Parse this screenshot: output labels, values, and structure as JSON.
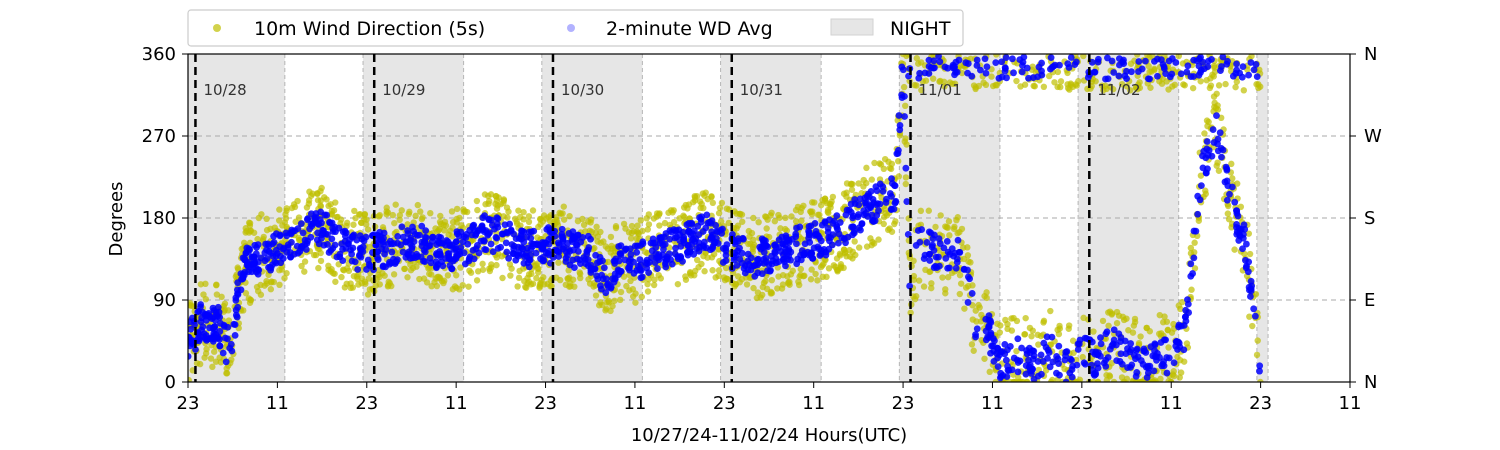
{
  "chart_data": {
    "type": "scatter",
    "xlabel": "10/27/24-11/02/24  Hours(UTC)",
    "ylabel": "Degrees",
    "x_range_hours": [
      0,
      156
    ],
    "x_tick_hours": [
      0,
      12,
      24,
      36,
      48,
      60,
      72,
      84,
      96,
      108,
      120,
      132,
      144,
      156
    ],
    "x_tick_labels": [
      "23",
      "11",
      "23",
      "11",
      "23",
      "11",
      "23",
      "11",
      "23",
      "11",
      "23",
      "11",
      "23",
      "11"
    ],
    "ylim": [
      0,
      360
    ],
    "y_ticks": [
      0,
      90,
      180,
      270,
      360
    ],
    "y_tick_labels": [
      "0",
      "90",
      "180",
      "270",
      "360"
    ],
    "right_axis_labels": [
      "N",
      "E",
      "S",
      "W",
      "N"
    ],
    "grid": "horizontal dashed at 90/180/270",
    "legend_position": "top",
    "legend": [
      {
        "label": "10m Wind Direction (5s)",
        "marker": "dot",
        "color": "#bfbf00"
      },
      {
        "label": "2-minute WD Avg",
        "marker": "dot",
        "color": "#0000ff"
      },
      {
        "label": "NIGHT",
        "marker": "patch",
        "color": "#e6e6e6"
      }
    ],
    "day_markers": [
      {
        "hour": 1,
        "label": "10/28"
      },
      {
        "hour": 25,
        "label": "10/29"
      },
      {
        "hour": 49,
        "label": "10/30"
      },
      {
        "hour": 73,
        "label": "10/31"
      },
      {
        "hour": 97,
        "label": "11/01"
      },
      {
        "hour": 121,
        "label": "11/02"
      }
    ],
    "night_periods": [
      {
        "start": 0,
        "end": 13
      },
      {
        "start": 23.5,
        "end": 37
      },
      {
        "start": 47.5,
        "end": 61
      },
      {
        "start": 71.5,
        "end": 85
      },
      {
        "start": 95.5,
        "end": 109
      },
      {
        "start": 119.5,
        "end": 133
      },
      {
        "start": 143.5,
        "end": 145
      }
    ],
    "series": [
      {
        "name": "2-minute WD Avg",
        "color": "#0000ff",
        "hours": [
          0,
          1,
          2,
          3,
          4,
          5,
          6,
          7,
          8,
          10,
          12,
          14,
          16,
          18,
          20,
          22,
          24,
          26,
          28,
          30,
          32,
          34,
          36,
          38,
          40,
          42,
          44,
          46,
          48,
          50,
          52,
          54,
          56,
          58,
          60,
          62,
          64,
          66,
          68,
          70,
          72,
          74,
          76,
          78,
          80,
          82,
          84,
          86,
          88,
          90,
          92,
          94,
          95,
          96,
          97,
          98,
          100,
          102,
          104,
          106,
          107,
          108,
          109,
          110,
          112,
          114,
          116,
          118,
          120,
          122,
          124,
          126,
          128,
          130,
          132,
          134,
          136,
          138,
          140,
          142,
          144
        ],
        "degrees": [
          45,
          55,
          70,
          60,
          65,
          40,
          45,
          110,
          130,
          140,
          145,
          150,
          165,
          170,
          150,
          145,
          140,
          145,
          150,
          155,
          150,
          140,
          145,
          150,
          165,
          160,
          150,
          145,
          150,
          150,
          145,
          140,
          115,
          135,
          130,
          140,
          145,
          150,
          160,
          165,
          150,
          140,
          135,
          140,
          145,
          150,
          155,
          160,
          170,
          185,
          195,
          205,
          210,
          350,
          80,
          150,
          145,
          140,
          135,
          50,
          70,
          40,
          20,
          25,
          30,
          20,
          35,
          15,
          30,
          25,
          40,
          30,
          20,
          30,
          25,
          60,
          230,
          280,
          200,
          150,
          10
        ]
      },
      {
        "name": "10m Wind Direction (5s)",
        "color": "#bfbf00",
        "hours": [
          0,
          1,
          2,
          3,
          4,
          5,
          6,
          7,
          8,
          10,
          12,
          14,
          16,
          18,
          20,
          22,
          24,
          26,
          28,
          30,
          32,
          34,
          36,
          38,
          40,
          42,
          44,
          46,
          48,
          50,
          52,
          54,
          56,
          58,
          60,
          62,
          64,
          66,
          68,
          70,
          72,
          74,
          76,
          78,
          80,
          82,
          84,
          86,
          88,
          90,
          92,
          94,
          95,
          96,
          97,
          98,
          100,
          102,
          104,
          106,
          107,
          108,
          109,
          110,
          112,
          114,
          116,
          118,
          120,
          122,
          124,
          126,
          128,
          130,
          132,
          134,
          136,
          138,
          140,
          142,
          144
        ],
        "degrees": [
          45,
          55,
          70,
          60,
          65,
          40,
          45,
          110,
          130,
          140,
          145,
          150,
          165,
          170,
          150,
          145,
          140,
          145,
          150,
          155,
          150,
          140,
          145,
          150,
          165,
          160,
          150,
          145,
          150,
          150,
          145,
          140,
          115,
          135,
          130,
          140,
          145,
          150,
          160,
          165,
          150,
          140,
          135,
          140,
          145,
          150,
          155,
          160,
          170,
          185,
          195,
          205,
          210,
          350,
          80,
          150,
          145,
          140,
          135,
          50,
          70,
          40,
          20,
          25,
          30,
          20,
          35,
          15,
          30,
          25,
          40,
          30,
          20,
          30,
          25,
          60,
          230,
          280,
          200,
          150,
          10
        ],
        "scatter_spread_deg": 45,
        "upper_band_deg": 340,
        "upper_band_hours": [
          96,
          144
        ]
      }
    ]
  }
}
